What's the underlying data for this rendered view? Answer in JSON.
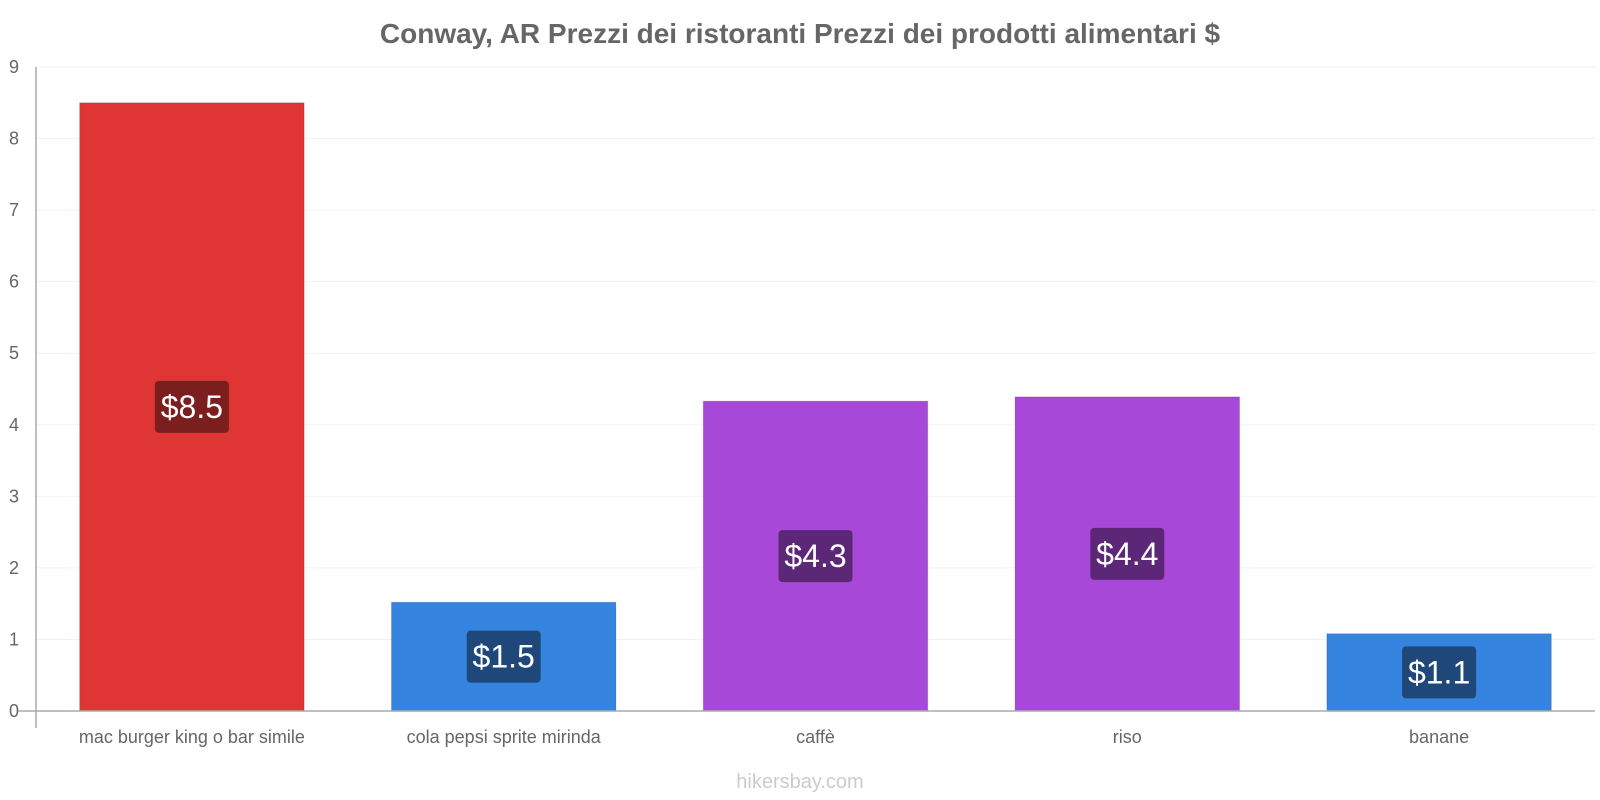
{
  "chart_data": {
    "type": "bar",
    "title": "Conway, AR Prezzi dei ristoranti Prezzi dei prodotti alimentari $",
    "categories": [
      "mac burger king o bar simile",
      "cola pepsi sprite mirinda",
      "caffè",
      "riso",
      "banane"
    ],
    "values": [
      8.5,
      1.52,
      4.33,
      4.39,
      1.08
    ],
    "labels": [
      "$8.5",
      "$1.5",
      "$4.3",
      "$4.4",
      "$1.1"
    ],
    "bar_colors": [
      "#e03535",
      "#3584e0",
      "#a748d9",
      "#a748d9",
      "#3584e0"
    ],
    "label_bg_colors": [
      "#721c1c",
      "#1d4270",
      "#56256f",
      "#56256f",
      "#1d4270"
    ],
    "xlabel": "",
    "ylabel": "",
    "ylim": [
      0,
      9
    ],
    "yticks": [
      "0",
      "1",
      "2",
      "3",
      "4",
      "5",
      "6",
      "7",
      "8",
      "9"
    ],
    "grid": true
  },
  "footer": {
    "credit": "hikersbay.com"
  }
}
